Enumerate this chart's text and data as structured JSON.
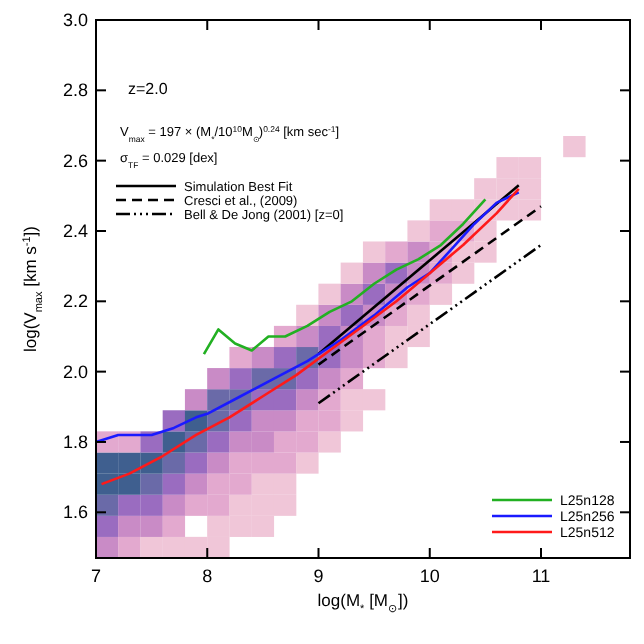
{
  "chart_data": {
    "type": "line",
    "xlabel": "log(M$_{*}$ [M$_{⊙}$])",
    "ylabel": "log(V$_{max}$ [km s$^{-1}$])",
    "xlim": [
      7,
      11.8
    ],
    "ylim": [
      1.47,
      3.0
    ],
    "xticks": [
      7,
      8,
      9,
      10,
      11
    ],
    "yticks": [
      1.6,
      1.8,
      {
        "value": 2,
        "label": "2.0"
      },
      2.2,
      2.4,
      2.6,
      2.8,
      {
        "value": 3,
        "label": "3.0"
      }
    ],
    "legend": "bottom right",
    "annotations": [
      "z=2.0",
      "V$_{max}$ = 197 × (M$_{*}$/10$^{10}$M$_{⊙}$)$^{0.24}$ [km sec$^{-1}$]",
      "σ$_{TF}$ = 0.029 [dex]"
    ],
    "series": [
      {
        "type": "scatter",
        "marker": "square",
        "x": [
          7.1,
          7.1,
          7.1,
          7.1,
          7.1,
          7.1,
          7.3,
          7.3,
          7.3,
          7.3,
          7.3,
          7.3,
          7.5,
          7.5,
          7.5,
          7.5,
          7.5,
          7.5,
          7.7,
          7.7,
          7.7,
          7.7,
          7.7,
          7.7,
          7.7,
          7.9,
          7.9,
          7.9,
          7.9,
          7.9,
          7.9,
          7.9,
          8.1,
          8.1,
          8.1,
          8.1,
          8.1,
          8.1,
          8.1,
          8.1,
          8.1,
          8.3,
          8.3,
          8.3,
          8.3,
          8.3,
          8.3,
          8.3,
          8.3,
          8.3,
          8.5,
          8.5,
          8.5,
          8.5,
          8.5,
          8.5,
          8.5,
          8.5,
          8.5,
          8.7,
          8.7,
          8.7,
          8.7,
          8.7,
          8.7,
          8.7,
          8.7,
          8.7,
          8.9,
          8.9,
          8.9,
          8.9,
          8.9,
          8.9,
          8.9,
          8.9,
          9.1,
          9.1,
          9.1,
          9.1,
          9.1,
          9.1,
          9.1,
          9.1,
          9.3,
          9.3,
          9.3,
          9.3,
          9.3,
          9.3,
          9.3,
          9.3,
          9.5,
          9.5,
          9.5,
          9.5,
          9.5,
          9.5,
          9.5,
          9.7,
          9.7,
          9.7,
          9.7,
          9.7,
          9.7,
          9.9,
          9.9,
          9.9,
          9.9,
          9.9,
          9.9,
          10.1,
          10.1,
          10.1,
          10.1,
          10.1,
          10.3,
          10.3,
          10.3,
          10.3,
          10.5,
          10.5,
          10.5,
          10.5,
          10.7,
          10.7,
          10.7,
          10.9,
          10.9,
          10.9,
          11.3
        ],
        "values": [
          1.5,
          1.56,
          1.62,
          1.68,
          1.74,
          1.8,
          1.5,
          1.56,
          1.62,
          1.68,
          1.74,
          1.8,
          1.5,
          1.56,
          1.62,
          1.68,
          1.74,
          1.8,
          1.5,
          1.56,
          1.62,
          1.68,
          1.74,
          1.8,
          1.86,
          1.5,
          1.62,
          1.68,
          1.74,
          1.8,
          1.86,
          1.92,
          1.5,
          1.56,
          1.62,
          1.68,
          1.74,
          1.8,
          1.86,
          1.92,
          1.98,
          1.56,
          1.62,
          1.68,
          1.74,
          1.8,
          1.86,
          1.92,
          1.98,
          2.04,
          1.56,
          1.62,
          1.68,
          1.74,
          1.8,
          1.86,
          1.92,
          1.98,
          2.04,
          1.62,
          1.68,
          1.74,
          1.8,
          1.86,
          1.92,
          1.98,
          2.04,
          2.1,
          1.74,
          1.8,
          1.86,
          1.92,
          1.98,
          2.04,
          2.1,
          2.16,
          1.8,
          1.86,
          1.92,
          1.98,
          2.04,
          2.1,
          2.16,
          2.22,
          1.86,
          1.92,
          1.98,
          2.04,
          2.1,
          2.16,
          2.22,
          2.28,
          1.92,
          2.04,
          2.1,
          2.16,
          2.22,
          2.28,
          2.34,
          2.04,
          2.1,
          2.16,
          2.22,
          2.28,
          2.34,
          2.1,
          2.16,
          2.22,
          2.28,
          2.34,
          2.4,
          2.22,
          2.28,
          2.34,
          2.4,
          2.46,
          2.28,
          2.34,
          2.4,
          2.46,
          2.34,
          2.4,
          2.46,
          2.52,
          2.46,
          2.52,
          2.58,
          2.46,
          2.52,
          2.58,
          2.64
        ],
        "colors": [
          "#c98bc6",
          "#9a6cc0",
          "#6a6aa8",
          "#3f5f8f",
          "#3f5f8f",
          "#e3a9cf",
          "#e3a9cf",
          "#c98bc6",
          "#9a6cc0",
          "#3f5f8f",
          "#3f5f8f",
          "#e3a9cf",
          "#f0c6d8",
          "#c98bc6",
          "#9a6cc0",
          "#6a6aa8",
          "#3f5f8f",
          "#9a6cc0",
          "#f0c6d8",
          "#e3a9cf",
          "#c98bc6",
          "#9a6cc0",
          "#6a6aa8",
          "#3f5f8f",
          "#9a6cc0",
          "#f0c6d8",
          "#e3a9cf",
          "#c98bc6",
          "#9a6cc0",
          "#6a6aa8",
          "#3f5f8f",
          "#c98bc6",
          "#f0c6d8",
          "#f0c6d8",
          "#e3a9cf",
          "#e3a9cf",
          "#c98bc6",
          "#9a6cc0",
          "#6a6aa8",
          "#6a6aa8",
          "#c98bc6",
          "#f0c6d8",
          "#f0c6d8",
          "#e3a9cf",
          "#e3a9cf",
          "#c98bc6",
          "#9a6cc0",
          "#6a6aa8",
          "#9a6cc0",
          "#e3a9cf",
          "#f0c6d8",
          "#f0c6d8",
          "#f0c6d8",
          "#e3a9cf",
          "#c98bc6",
          "#c98bc6",
          "#9a6cc0",
          "#6a6aa8",
          "#c98bc6",
          "#f0c6d8",
          "#f0c6d8",
          "#e3a9cf",
          "#e3a9cf",
          "#c98bc6",
          "#9a6cc0",
          "#6a6aa8",
          "#9a6cc0",
          "#e3a9cf",
          "#f0c6d8",
          "#e3a9cf",
          "#e3a9cf",
          "#c98bc6",
          "#9a6cc0",
          "#6a6aa8",
          "#c98bc6",
          "#f0c6d8",
          "#f0c6d8",
          "#e3a9cf",
          "#e3a9cf",
          "#c98bc6",
          "#9a6cc0",
          "#9a6cc0",
          "#c98bc6",
          "#f0c6d8",
          "#f0c6d8",
          "#f0c6d8",
          "#e3a9cf",
          "#c98bc6",
          "#c98bc6",
          "#9a6cc0",
          "#c98bc6",
          "#f0c6d8",
          "#f0c6d8",
          "#e3a9cf",
          "#e3a9cf",
          "#c98bc6",
          "#9a6cc0",
          "#c98bc6",
          "#f0c6d8",
          "#f0c6d8",
          "#f0c6d8",
          "#e3a9cf",
          "#c98bc6",
          "#9a6cc0",
          "#e3a9cf",
          "#f0c6d8",
          "#f0c6d8",
          "#e3a9cf",
          "#c98bc6",
          "#c98bc6",
          "#f0c6d8",
          "#f0c6d8",
          "#e3a9cf",
          "#e3a9cf",
          "#e3a9cf",
          "#f0c6d8",
          "#f0c6d8",
          "#f0c6d8",
          "#e3a9cf",
          "#f0c6d8",
          "#f0c6d8",
          "#f0c6d8",
          "#f0c6d8",
          "#f0c6d8",
          "#f0c6d8",
          "#f0c6d8",
          "#f0c6d8",
          "#f0c6d8",
          "#f0c6d8",
          "#f0c6d8",
          "#f0c6d8"
        ]
      },
      {
        "name": "Simulation Best Fit",
        "color": "#000000",
        "line_style": "solid",
        "x": [
          9.0,
          10.8
        ],
        "values": [
          2.05,
          2.53
        ]
      },
      {
        "name": "Cresci et al., (2009)",
        "color": "#000000",
        "line_style": "dashed",
        "x": [
          9.0,
          11.0
        ],
        "values": [
          2.02,
          2.47
        ]
      },
      {
        "name": "Bell & De Jong (2001) [z=0]",
        "color": "#000000",
        "line_style": "dashdot",
        "x": [
          9.0,
          11.0
        ],
        "values": [
          1.91,
          2.36
        ]
      },
      {
        "name": "L25n128",
        "color": "#22b022",
        "x": [
          7.97,
          8.1,
          8.25,
          8.4,
          8.55,
          8.7,
          8.9,
          9.1,
          9.3,
          9.5,
          9.7,
          9.9,
          10.1,
          10.3,
          10.5
        ],
        "values": [
          2.05,
          2.12,
          2.08,
          2.06,
          2.1,
          2.1,
          2.13,
          2.17,
          2.2,
          2.25,
          2.29,
          2.32,
          2.36,
          2.42,
          2.49
        ]
      },
      {
        "name": "L25n256",
        "color": "#1a1aff",
        "x": [
          7.0,
          7.2,
          7.5,
          7.7,
          7.9,
          8.0,
          8.3,
          8.6,
          8.9,
          9.2,
          9.5,
          9.8,
          10.0,
          10.2,
          10.4,
          10.6,
          10.8
        ],
        "values": [
          1.8,
          1.82,
          1.82,
          1.84,
          1.87,
          1.88,
          1.93,
          1.98,
          2.03,
          2.09,
          2.16,
          2.24,
          2.28,
          2.35,
          2.42,
          2.48,
          2.51
        ]
      },
      {
        "name": "L25n512",
        "color": "#ff1a1a",
        "x": [
          7.05,
          7.3,
          7.6,
          7.9,
          8.2,
          8.5,
          8.8,
          9.1,
          9.4,
          9.7,
          10.0,
          10.3,
          10.6,
          10.8
        ],
        "values": [
          1.68,
          1.71,
          1.76,
          1.82,
          1.87,
          1.93,
          1.99,
          2.06,
          2.13,
          2.2,
          2.28,
          2.36,
          2.45,
          2.52
        ]
      }
    ]
  }
}
